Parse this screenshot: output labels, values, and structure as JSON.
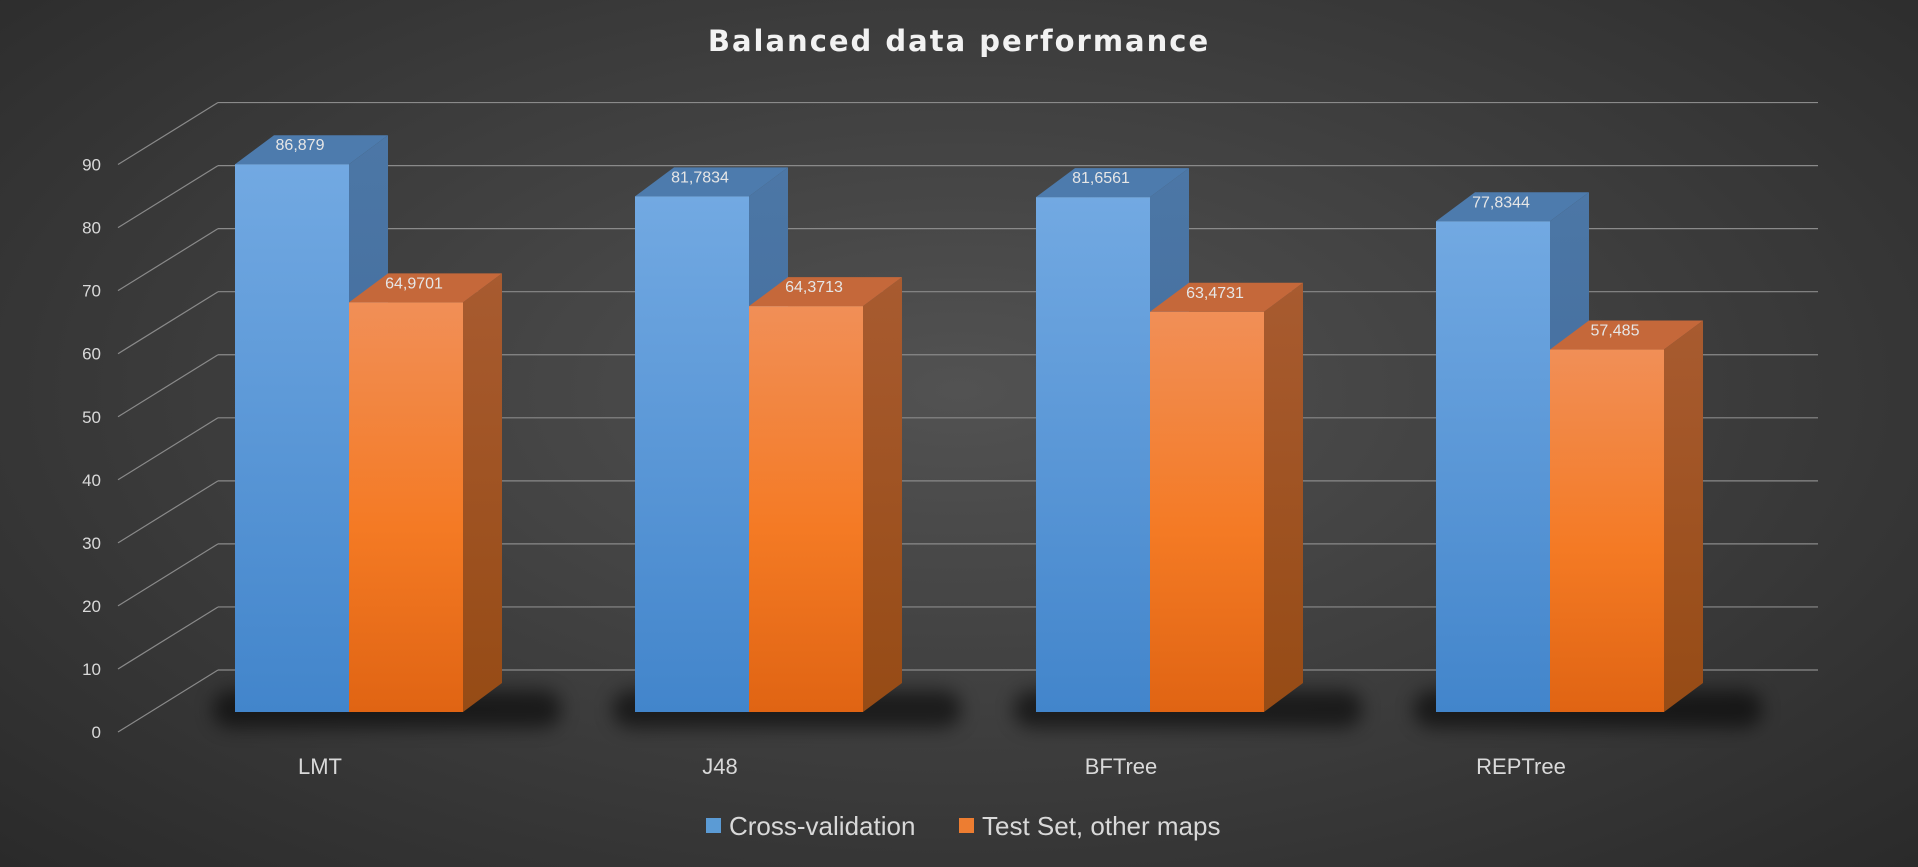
{
  "chart_data": {
    "type": "bar",
    "title": "Balanced data performance",
    "categories": [
      "LMT",
      "J48",
      "BFTree",
      "REPTree"
    ],
    "series": [
      {
        "name": "Cross-validation",
        "values": [
          86.879,
          81.7834,
          81.6561,
          77.8344
        ],
        "labels": [
          "86,879",
          "81,7834",
          "81,6561",
          "77,8344"
        ],
        "color": "#5b9bd5"
      },
      {
        "name": "Test Set, other maps",
        "values": [
          64.9701,
          64.3713,
          63.4731,
          57.485
        ],
        "labels": [
          "64,9701",
          "64,3713",
          "63,4731",
          "57,485"
        ],
        "color": "#ed7d31"
      }
    ],
    "ylim": [
      0,
      90
    ],
    "yticks": [
      "0",
      "10",
      "20",
      "30",
      "40",
      "50",
      "60",
      "70",
      "80",
      "90"
    ],
    "grid": true,
    "legend": "bottom",
    "style": "3d-clustered-column"
  }
}
